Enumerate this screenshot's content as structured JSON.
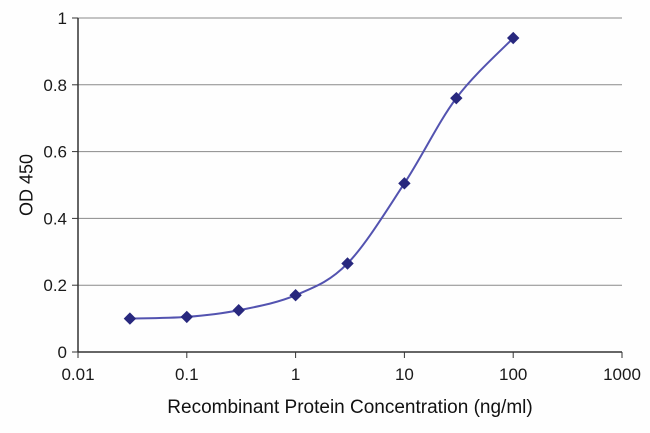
{
  "figure": {
    "background": "#fefefe"
  },
  "chart_data": {
    "type": "line",
    "title": "",
    "xlabel": "Recombinant Protein Concentration (ng/ml)",
    "ylabel": "OD 450",
    "x_scale": "log",
    "xlim": [
      0.01,
      1000
    ],
    "ylim": [
      0,
      1
    ],
    "x_ticks": [
      "0.01",
      "0.1",
      "1",
      "10",
      "100",
      "1000"
    ],
    "y_ticks": [
      "0",
      "0.2",
      "0.4",
      "0.6",
      "0.8",
      "1"
    ],
    "grid": "horizontal",
    "grid_color": "#8a8a8a",
    "axis_color": "#333333",
    "series": [
      {
        "name": "OD 450",
        "x": [
          0.03,
          0.1,
          0.3,
          1,
          3,
          10,
          30,
          100
        ],
        "y": [
          0.1,
          0.105,
          0.125,
          0.17,
          0.265,
          0.505,
          0.76,
          0.94
        ],
        "line_color": "#5353b0",
        "marker": "diamond",
        "marker_color": "#28287e"
      }
    ]
  }
}
